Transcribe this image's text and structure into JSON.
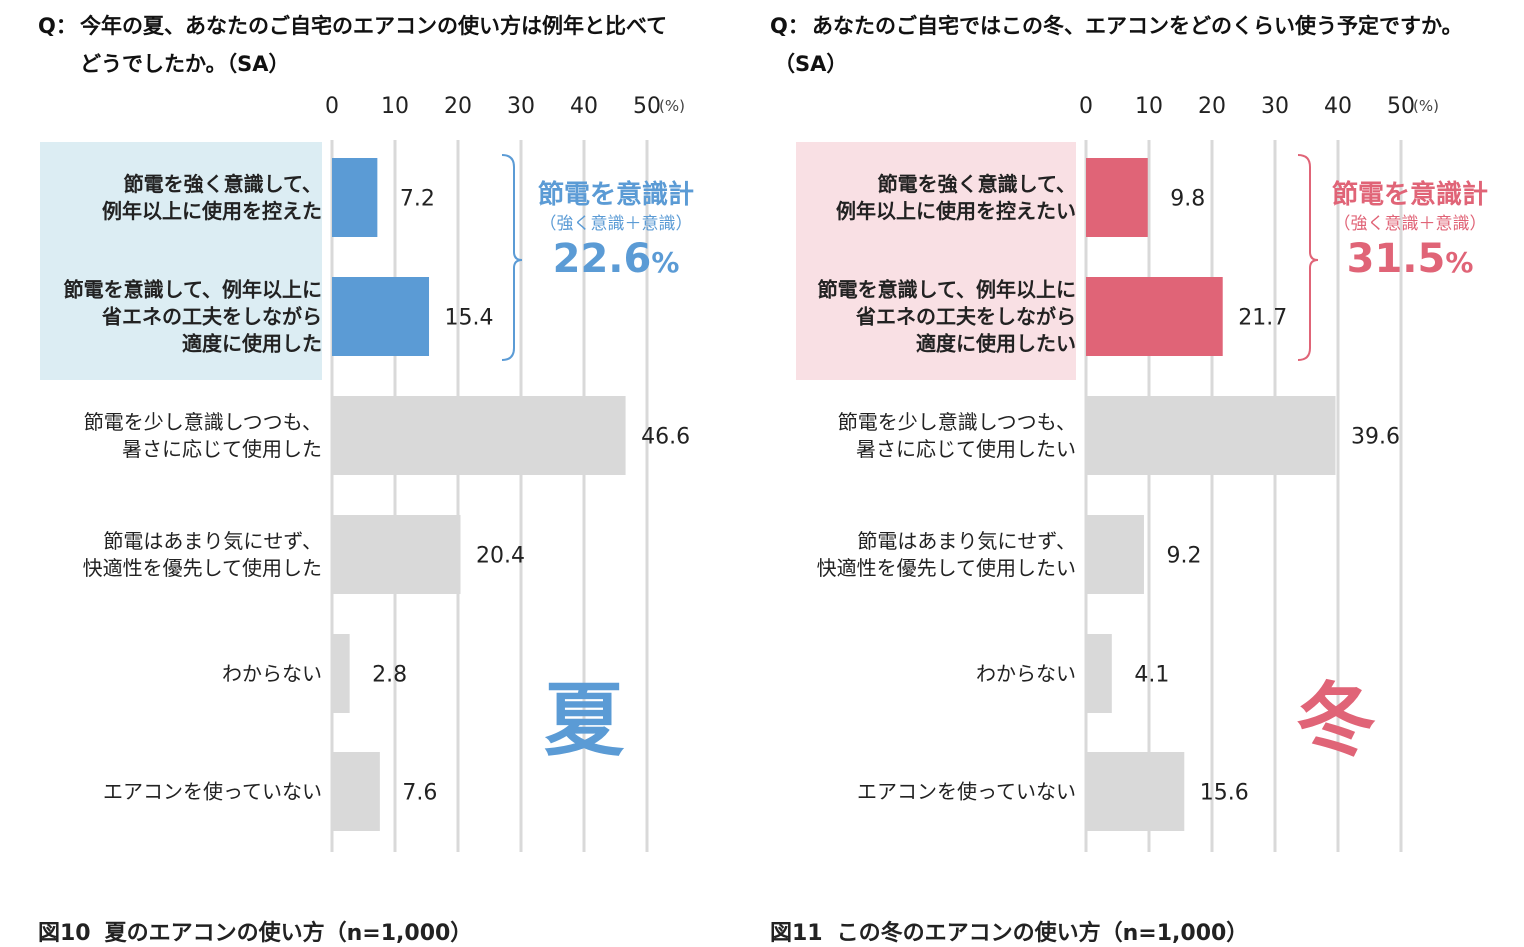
{
  "colors": {
    "summer_accent": "#5b9bd5",
    "summer_highlight_bg": "#dcedf3",
    "winter_accent": "#e06477",
    "winter_highlight_bg": "#f9e0e4",
    "other_bar": "#d9d9d9",
    "grid": "#d9d9d9"
  },
  "panels": [
    {
      "id": "summer",
      "question_prefix": "Q：",
      "question_line1": "今年の夏、あなたのご自宅のエアコンの使い方は例年と比べて",
      "question_line2": "どうでしたか。（SA）",
      "caption_fig": "図10",
      "caption_text": "夏のエアコンの使い方（n=1,000）",
      "season_label": "夏",
      "bracket_title": "節電を意識計",
      "bracket_sub": "（強く意識＋意識）",
      "bracket_value": "22.6",
      "bracket_unit": "%"
    },
    {
      "id": "winter",
      "question_prefix": "Q：",
      "question_line1": "あなたのご自宅ではこの冬、エアコンをどのくらい使う予定ですか。",
      "question_line2": "（SA）",
      "caption_fig": "図11",
      "caption_text": "この冬のエアコンの使い方（n=1,000）",
      "season_label": "冬",
      "bracket_title": "節電を意識計",
      "bracket_sub": "（強く意識＋意識）",
      "bracket_value": "31.5",
      "bracket_unit": "%"
    }
  ],
  "chart_data": [
    {
      "type": "bar",
      "orientation": "horizontal",
      "title": "図10 夏のエアコンの使い方（n=1,000）",
      "xlim": [
        0,
        50
      ],
      "xticks": [
        0,
        10,
        20,
        30,
        40,
        50
      ],
      "unit": "(%)",
      "grid": true,
      "categories": [
        [
          "節電を強く意識して、",
          "例年以上に使用を控えた"
        ],
        [
          "節電を意識して、例年以上に",
          "省エネの工夫をしながら",
          "適度に使用した"
        ],
        [
          "節電を少し意識しつつも、",
          "暑さに応じて使用した"
        ],
        [
          "節電はあまり気にせず、",
          "快適性を優先して使用した"
        ],
        [
          "わからない"
        ],
        [
          "エアコンを使っていない"
        ]
      ],
      "values": [
        7.2,
        15.4,
        46.6,
        20.4,
        2.8,
        7.6
      ],
      "labels": [
        "7.2",
        "15.4",
        "46.6",
        "20.4",
        "2.8",
        "7.6"
      ],
      "highlighted": [
        true,
        true,
        false,
        false,
        false,
        false
      ],
      "bold_labels": [
        true,
        true,
        false,
        false,
        false,
        false
      ]
    },
    {
      "type": "bar",
      "orientation": "horizontal",
      "title": "図11 この冬のエアコンの使い方（n=1,000）",
      "xlim": [
        0,
        50
      ],
      "xticks": [
        0,
        10,
        20,
        30,
        40,
        50
      ],
      "unit": "(%)",
      "grid": true,
      "categories": [
        [
          "節電を強く意識して、",
          "例年以上に使用を控えたい"
        ],
        [
          "節電を意識して、例年以上に",
          "省エネの工夫をしながら",
          "適度に使用したい"
        ],
        [
          "節電を少し意識しつつも、",
          "暑さに応じて使用したい"
        ],
        [
          "節電はあまり気にせず、",
          "快適性を優先して使用したい"
        ],
        [
          "わからない"
        ],
        [
          "エアコンを使っていない"
        ]
      ],
      "values": [
        9.8,
        21.7,
        39.6,
        9.2,
        4.1,
        15.6
      ],
      "labels": [
        "9.8",
        "21.7",
        "39.6",
        "9.2",
        "4.1",
        "15.6"
      ],
      "highlighted": [
        true,
        true,
        false,
        false,
        false,
        false
      ],
      "bold_labels": [
        true,
        true,
        false,
        false,
        false,
        false
      ]
    }
  ]
}
